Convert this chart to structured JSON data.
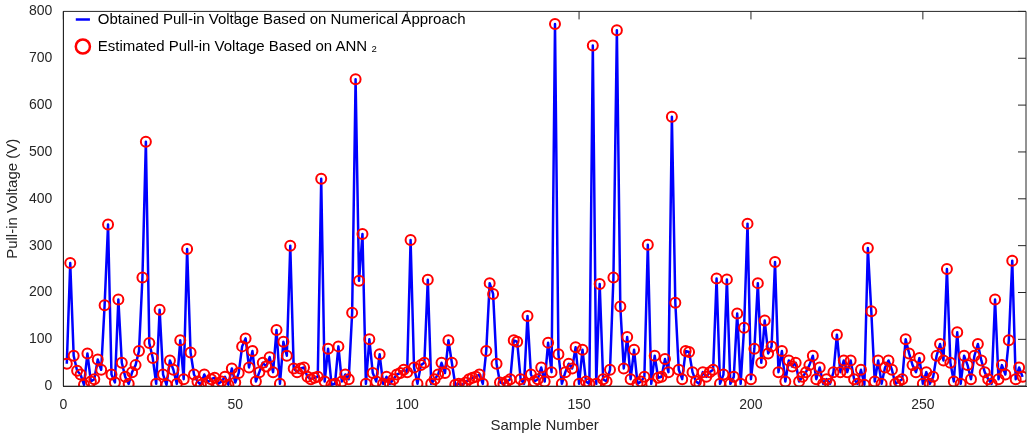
{
  "chart_data": {
    "type": "line",
    "xlabel": "Sample Number",
    "ylabel": "Pull-in Voltage (V)",
    "x": [
      1,
      2,
      3,
      4,
      5,
      6,
      7,
      8,
      9,
      10,
      11,
      12,
      13,
      14,
      15,
      16,
      17,
      18,
      19,
      20,
      21,
      22,
      23,
      24,
      25,
      26,
      27,
      28,
      29,
      30,
      31,
      32,
      33,
      34,
      35,
      36,
      37,
      38,
      39,
      40,
      41,
      42,
      43,
      44,
      45,
      46,
      47,
      48,
      49,
      50,
      51,
      52,
      53,
      54,
      55,
      56,
      57,
      58,
      59,
      60,
      61,
      62,
      63,
      64,
      65,
      66,
      67,
      68,
      69,
      70,
      71,
      72,
      73,
      74,
      75,
      76,
      77,
      78,
      79,
      80,
      81,
      82,
      83,
      84,
      85,
      86,
      87,
      88,
      89,
      90,
      91,
      92,
      93,
      94,
      95,
      96,
      97,
      98,
      99,
      100,
      101,
      102,
      103,
      104,
      105,
      106,
      107,
      108,
      109,
      110,
      111,
      112,
      113,
      114,
      115,
      116,
      117,
      118,
      119,
      120,
      121,
      122,
      123,
      124,
      125,
      126,
      127,
      128,
      129,
      130,
      131,
      132,
      133,
      134,
      135,
      136,
      137,
      138,
      139,
      140,
      141,
      142,
      143,
      144,
      145,
      146,
      147,
      148,
      149,
      150,
      151,
      152,
      153,
      154,
      155,
      156,
      157,
      158,
      159,
      160,
      161,
      162,
      163,
      164,
      165,
      166,
      167,
      168,
      169,
      170,
      171,
      172,
      173,
      174,
      175,
      176,
      177,
      178,
      179,
      180,
      181,
      182,
      183,
      184,
      185,
      186,
      187,
      188,
      189,
      190,
      191,
      192,
      193,
      194,
      195,
      196,
      197,
      198,
      199,
      200,
      201,
      202,
      203,
      204,
      205,
      206,
      207,
      208,
      209,
      210,
      211,
      212,
      213,
      214,
      215,
      216,
      217,
      218,
      219,
      220,
      221,
      222,
      223,
      224,
      225,
      226,
      227,
      228,
      229,
      230,
      231,
      232,
      233,
      234,
      235,
      236,
      237,
      238,
      239,
      240,
      241,
      242,
      243,
      244,
      245,
      246,
      247,
      248,
      249,
      250,
      251,
      252,
      253,
      254,
      255,
      256,
      257,
      258,
      259,
      260,
      261,
      262,
      263,
      264,
      265,
      266,
      267,
      268,
      269,
      270,
      271,
      272,
      273,
      274,
      275,
      276,
      277,
      278,
      279
    ],
    "series": [
      {
        "name": "Obtained Pull-in Voltage Based on Numerical Approach",
        "type": "line",
        "color": "#0000ff",
        "marker": "none",
        "values": [
          48,
          263,
          65,
          33,
          25,
          3,
          70,
          10,
          15,
          57,
          35,
          173,
          345,
          25,
          8,
          185,
          50,
          20,
          5,
          30,
          45,
          75,
          232,
          522,
          92,
          60,
          5,
          163,
          25,
          3,
          55,
          35,
          5,
          98,
          15,
          293,
          72,
          25,
          10,
          3,
          25,
          8,
          15,
          18,
          5,
          10,
          20,
          3,
          38,
          8,
          28,
          85,
          102,
          40,
          75,
          10,
          30,
          50,
          42,
          62,
          30,
          120,
          5,
          95,
          65,
          300,
          38,
          30,
          38,
          40,
          20,
          15,
          18,
          20,
          443,
          10,
          80,
          3,
          5,
          85,
          10,
          25,
          15,
          157,
          655,
          225,
          325,
          5,
          100,
          28,
          10,
          68,
          5,
          20,
          5,
          15,
          25,
          28,
          35,
          30,
          312,
          40,
          5,
          45,
          50,
          227,
          5,
          15,
          25,
          50,
          28,
          98,
          50,
          3,
          5,
          3,
          8,
          15,
          18,
          20,
          25,
          5,
          75,
          220,
          197,
          48,
          8,
          5,
          10,
          15,
          98,
          95,
          15,
          5,
          150,
          25,
          10,
          15,
          40,
          10,
          93,
          30,
          773,
          68,
          5,
          30,
          48,
          38,
          83,
          5,
          78,
          10,
          5,
          727,
          5,
          218,
          15,
          10,
          35,
          232,
          760,
          170,
          38,
          105,
          15,
          78,
          5,
          10,
          20,
          302,
          5,
          65,
          18,
          20,
          58,
          30,
          575,
          178,
          35,
          15,
          75,
          73,
          30,
          10,
          5,
          30,
          20,
          30,
          35,
          230,
          5,
          25,
          228,
          5,
          20,
          155,
          5,
          125,
          347,
          15,
          80,
          220,
          50,
          140,
          70,
          85,
          265,
          30,
          75,
          10,
          55,
          42,
          50,
          10,
          20,
          30,
          45,
          65,
          15,
          40,
          5,
          15,
          5,
          30,
          110,
          30,
          55,
          30,
          55,
          15,
          5,
          35,
          3,
          295,
          160,
          10,
          55,
          5,
          40,
          55,
          35,
          5,
          10,
          15,
          100,
          70,
          45,
          30,
          60,
          5,
          30,
          5,
          20,
          65,
          90,
          55,
          250,
          50,
          10,
          115,
          5,
          65,
          45,
          15,
          65,
          90,
          55,
          30,
          15,
          5,
          185,
          15,
          45,
          25,
          98,
          268,
          15,
          40,
          20
        ]
      },
      {
        "name": "Estimated Pull-in Voltage Based on ANN ₂",
        "type": "scatter",
        "color": "#ff0000",
        "marker": "circle",
        "values": [
          48,
          263,
          65,
          33,
          25,
          3,
          70,
          10,
          15,
          57,
          35,
          173,
          345,
          25,
          8,
          185,
          50,
          20,
          5,
          30,
          45,
          75,
          232,
          522,
          92,
          60,
          5,
          163,
          25,
          3,
          55,
          35,
          5,
          98,
          15,
          293,
          72,
          25,
          10,
          3,
          25,
          8,
          15,
          18,
          5,
          10,
          20,
          3,
          38,
          8,
          28,
          85,
          102,
          40,
          75,
          10,
          30,
          50,
          42,
          62,
          30,
          120,
          5,
          95,
          65,
          300,
          38,
          30,
          38,
          40,
          20,
          15,
          18,
          20,
          443,
          10,
          80,
          3,
          5,
          85,
          10,
          25,
          15,
          157,
          655,
          225,
          325,
          5,
          100,
          28,
          10,
          68,
          5,
          20,
          5,
          15,
          25,
          28,
          35,
          30,
          312,
          40,
          5,
          45,
          50,
          227,
          5,
          15,
          25,
          50,
          28,
          98,
          50,
          3,
          5,
          3,
          8,
          15,
          18,
          20,
          25,
          5,
          75,
          220,
          197,
          48,
          8,
          5,
          10,
          15,
          98,
          95,
          15,
          5,
          150,
          25,
          10,
          15,
          40,
          10,
          93,
          30,
          773,
          68,
          5,
          30,
          48,
          38,
          83,
          5,
          78,
          10,
          5,
          727,
          5,
          218,
          15,
          10,
          35,
          232,
          760,
          170,
          38,
          105,
          15,
          78,
          5,
          10,
          20,
          302,
          5,
          65,
          18,
          20,
          58,
          30,
          575,
          178,
          35,
          15,
          75,
          73,
          30,
          10,
          5,
          30,
          20,
          30,
          35,
          230,
          5,
          25,
          228,
          5,
          20,
          155,
          5,
          125,
          347,
          15,
          80,
          220,
          50,
          140,
          70,
          85,
          265,
          30,
          75,
          10,
          55,
          42,
          50,
          10,
          20,
          30,
          45,
          65,
          15,
          40,
          5,
          15,
          5,
          30,
          110,
          30,
          55,
          30,
          55,
          15,
          5,
          35,
          3,
          295,
          160,
          10,
          55,
          5,
          40,
          55,
          35,
          5,
          10,
          15,
          100,
          70,
          45,
          30,
          60,
          5,
          30,
          5,
          20,
          65,
          90,
          55,
          250,
          50,
          10,
          115,
          5,
          65,
          45,
          15,
          65,
          90,
          55,
          30,
          15,
          5,
          185,
          15,
          45,
          25,
          98,
          268,
          15,
          40,
          20
        ]
      }
    ],
    "xlim": [
      0,
      280
    ],
    "xticks": [
      0,
      50,
      100,
      150,
      200,
      250
    ],
    "ylim": [
      0,
      800
    ],
    "yticks": [
      0,
      100,
      200,
      300,
      400,
      500,
      600,
      700,
      800
    ],
    "grid": false,
    "legend": "top left"
  }
}
